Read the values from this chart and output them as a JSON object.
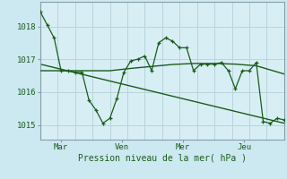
{
  "background_color": "#cce8f0",
  "plot_bg_color": "#d8eef5",
  "grid_color": "#b8d4dc",
  "line_color": "#1a5c1a",
  "ylabel_ticks": [
    1015,
    1016,
    1017,
    1018
  ],
  "ylim": [
    1014.55,
    1018.75
  ],
  "xlabel": "Pression niveau de la mer( hPa )",
  "xtick_labels": [
    "Mar",
    "Ven",
    "Mer",
    "Jeu"
  ],
  "xtick_positions": [
    24,
    94,
    164,
    234
  ],
  "xlim_data": [
    0,
    280
  ],
  "n_vgrid": 14,
  "jagged_x": [
    0,
    8,
    16,
    24,
    32,
    40,
    48,
    56,
    64,
    72,
    80,
    88,
    96,
    104,
    112,
    120,
    128,
    136,
    144,
    152,
    160,
    168,
    176,
    184,
    192,
    200,
    208,
    216,
    224,
    232,
    240,
    248,
    256,
    264,
    272,
    280
  ],
  "jagged_y": [
    1018.45,
    1018.05,
    1017.65,
    1016.65,
    1016.65,
    1016.6,
    1016.6,
    1015.75,
    1015.45,
    1015.05,
    1015.2,
    1015.8,
    1016.6,
    1016.95,
    1017.0,
    1017.1,
    1016.65,
    1017.5,
    1017.65,
    1017.55,
    1017.35,
    1017.35,
    1016.65,
    1016.85,
    1016.85,
    1016.85,
    1016.9,
    1016.65,
    1016.1,
    1016.65,
    1016.65,
    1016.9,
    1015.1,
    1015.05,
    1015.2,
    1015.15
  ],
  "smooth_x": [
    0,
    24,
    48,
    80,
    104,
    128,
    152,
    176,
    200,
    224,
    248,
    280
  ],
  "smooth_y": [
    1016.65,
    1016.65,
    1016.65,
    1016.65,
    1016.72,
    1016.78,
    1016.84,
    1016.87,
    1016.87,
    1016.85,
    1016.8,
    1016.55
  ],
  "trend_x": [
    0,
    280
  ],
  "trend_y": [
    1016.85,
    1015.05
  ]
}
